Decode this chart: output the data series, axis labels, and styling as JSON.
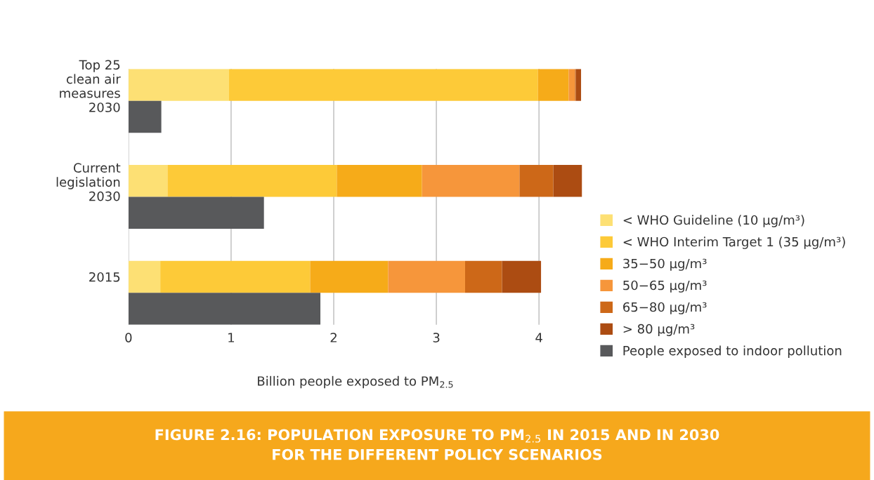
{
  "chart_data": {
    "type": "bar",
    "orientation": "horizontal",
    "stacked": true,
    "title": "FIGURE 2.16: POPULATION EXPOSURE TO PM$_{2.5}$ IN 2015 AND IN 2030\nFOR THE DIFFERENT POLICY SCENARIOS",
    "xlabel": "Billion people exposed to PM$_{2.5}$",
    "categories": [
      "Top 25\nclean air\nmeasures\n2030",
      null,
      null,
      "Current\nlegislation\n2030",
      null,
      null,
      "2015",
      null
    ],
    "series": [
      {
        "name": "< WHO Guideline (10 µg/m³)",
        "color": "#fde074",
        "values": [
          0.98,
          null,
          null,
          0.38,
          null,
          null,
          0.31,
          null
        ]
      },
      {
        "name": "< WHO Interim Target 1 (35 µg/m³)",
        "color": "#fdca38",
        "values": [
          3.01,
          null,
          null,
          1.65,
          null,
          null,
          1.46,
          null
        ]
      },
      {
        "name": "35−50 µg/m³",
        "color": "#f6ab19",
        "values": [
          0.3,
          null,
          null,
          0.83,
          null,
          null,
          0.76,
          null
        ]
      },
      {
        "name": "50−65 µg/m³",
        "color": "#f6963b",
        "values": [
          0.06,
          null,
          null,
          0.95,
          null,
          null,
          0.75,
          null
        ]
      },
      {
        "name": "65−80 µg/m³",
        "color": "#cd6818",
        "values": [
          0.01,
          null,
          null,
          0.33,
          null,
          null,
          0.36,
          null
        ]
      },
      {
        "name": "> 80 µg/m³",
        "color": "#ac4c12",
        "values": [
          0.05,
          null,
          null,
          0.28,
          null,
          null,
          0.38,
          null
        ]
      },
      {
        "name": "People exposed to indoor pollution",
        "color": "#58595b",
        "values": [
          null,
          0.32,
          null,
          null,
          1.32,
          null,
          null,
          1.87
        ]
      }
    ],
    "xlim": [
      0,
      4.42
    ],
    "xticks": [
      0,
      1,
      2,
      3,
      4
    ],
    "grid": "x",
    "legend": "right"
  }
}
